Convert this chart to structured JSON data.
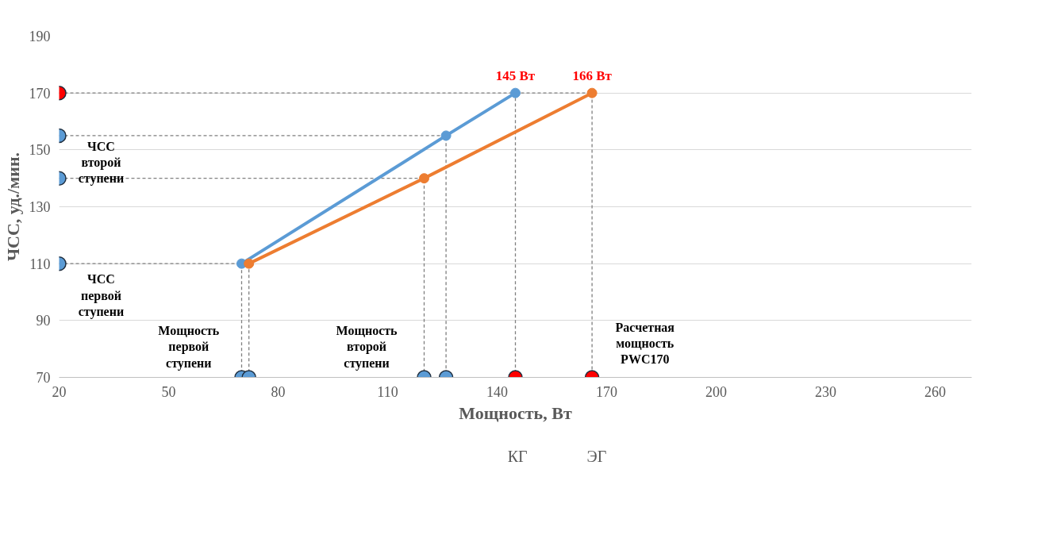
{
  "chart_data": {
    "type": "line",
    "xlabel": "Мощность, Вт",
    "ylabel": "ЧСС, уд./мин.",
    "xlim": [
      20,
      270
    ],
    "xticks": [
      20,
      50,
      80,
      110,
      140,
      170,
      200,
      230,
      260
    ],
    "ylim": [
      70,
      190
    ],
    "yticks": [
      70,
      90,
      110,
      130,
      150,
      170,
      190
    ],
    "grid": "y",
    "legend": "bottom",
    "marker": "circle",
    "series": [
      {
        "name": "КГ",
        "color": "#5b9bd5",
        "x": [
          70,
          126,
          145
        ],
        "values": [
          110,
          155,
          170
        ]
      },
      {
        "name": "ЭГ",
        "color": "#ed7d31",
        "x": [
          72,
          120,
          166
        ],
        "values": [
          110,
          140,
          170
        ]
      },
      {
        "type": "line",
        "line_style": "dashed",
        "marker": "none",
        "color": "#7f7f7f",
        "x": [
          20,
          70,
          70
        ],
        "values": [
          110,
          110,
          70
        ]
      },
      {
        "type": "line",
        "line_style": "dashed",
        "marker": "none",
        "color": "#7f7f7f",
        "x": [
          20,
          126,
          126
        ],
        "values": [
          155,
          155,
          70
        ]
      },
      {
        "type": "line",
        "line_style": "dashed",
        "marker": "none",
        "color": "#7f7f7f",
        "x": [
          20,
          145,
          145
        ],
        "values": [
          170,
          170,
          70
        ]
      },
      {
        "type": "line",
        "line_style": "dashed",
        "marker": "none",
        "color": "#7f7f7f",
        "x": [
          72,
          72
        ],
        "values": [
          110,
          70
        ]
      },
      {
        "type": "line",
        "line_style": "dashed",
        "marker": "none",
        "color": "#7f7f7f",
        "x": [
          20,
          120,
          120
        ],
        "values": [
          140,
          140,
          70
        ]
      },
      {
        "type": "line",
        "line_style": "dashed",
        "marker": "none",
        "color": "#7f7f7f",
        "x": [
          145,
          166,
          166
        ],
        "values": [
          170,
          170,
          70
        ]
      },
      {
        "type": "scatter",
        "x": [
          20,
          20,
          20,
          20
        ],
        "values": [
          170,
          155,
          140,
          110
        ],
        "colors": [
          "#ff0000",
          "#5b9bd5",
          "#5b9bd5",
          "#5b9bd5"
        ]
      },
      {
        "type": "scatter",
        "x": [
          70,
          72,
          120,
          126,
          145,
          166
        ],
        "values": [
          70,
          70,
          70,
          70,
          70,
          70
        ],
        "colors": [
          "#5b9bd5",
          "#5b9bd5",
          "#5b9bd5",
          "#5b9bd5",
          "#ff0000",
          "#ff0000"
        ]
      }
    ],
    "annotations": [
      {
        "text": "145 Вт",
        "x": 145,
        "y": 170
      },
      {
        "text": "166 Вт",
        "x": 166,
        "y": 170
      },
      "ЧСС\nвторой\nступени",
      "ЧСС\nпервой\nступени",
      "Мощность\nпервой\nступени",
      "Мощность\nвторой\nступени",
      "Расчетная\nмощность\nPWC170"
    ]
  }
}
